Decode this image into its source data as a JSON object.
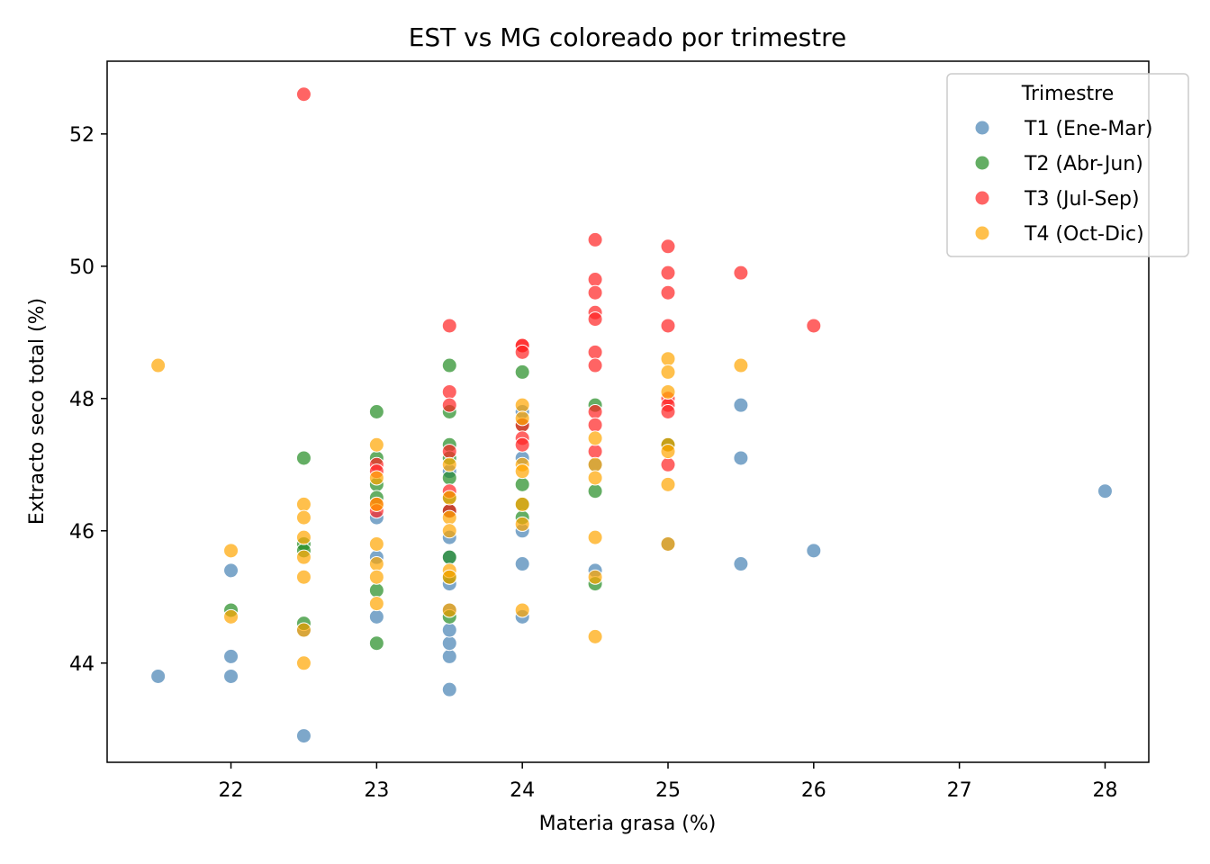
{
  "chart_data": {
    "type": "scatter",
    "title": "EST vs MG coloreado por trimestre",
    "xlabel": "Materia grasa (%)",
    "ylabel": "Extracto seco total (%)",
    "xlim": [
      21.15,
      28.3
    ],
    "ylim": [
      42.5,
      53.1
    ],
    "xticks": [
      "22",
      "23",
      "24",
      "25",
      "26",
      "27",
      "28"
    ],
    "yticks": [
      "44",
      "46",
      "48",
      "50",
      "52"
    ],
    "legend": {
      "title": "Trimestre",
      "position": "top-right"
    },
    "series": [
      {
        "name": "T1 (Ene-Mar)",
        "color": "#4682b4",
        "points": [
          [
            21.5,
            43.8
          ],
          [
            22.0,
            45.4
          ],
          [
            22.0,
            44.1
          ],
          [
            22.0,
            43.8
          ],
          [
            22.5,
            42.9
          ],
          [
            22.5,
            44.5
          ],
          [
            23.0,
            44.7
          ],
          [
            23.0,
            46.2
          ],
          [
            23.0,
            45.6
          ],
          [
            23.5,
            43.6
          ],
          [
            23.5,
            44.1
          ],
          [
            23.5,
            44.3
          ],
          [
            23.5,
            44.5
          ],
          [
            23.5,
            44.8
          ],
          [
            23.5,
            45.2
          ],
          [
            23.5,
            45.6
          ],
          [
            23.5,
            45.9
          ],
          [
            23.5,
            46.3
          ],
          [
            23.5,
            46.9
          ],
          [
            24.0,
            44.7
          ],
          [
            24.0,
            45.5
          ],
          [
            24.0,
            46.0
          ],
          [
            24.0,
            47.1
          ],
          [
            24.0,
            47.8
          ],
          [
            24.5,
            45.4
          ],
          [
            24.5,
            47.0
          ],
          [
            25.0,
            45.8
          ],
          [
            25.0,
            47.3
          ],
          [
            25.5,
            47.9
          ],
          [
            25.5,
            47.1
          ],
          [
            25.5,
            45.5
          ],
          [
            26.0,
            45.7
          ],
          [
            28.0,
            46.6
          ]
        ]
      },
      {
        "name": "T2 (Abr-Jun)",
        "color": "#228b22",
        "points": [
          [
            22.0,
            44.8
          ],
          [
            22.5,
            47.1
          ],
          [
            22.5,
            45.8
          ],
          [
            22.5,
            45.7
          ],
          [
            22.5,
            44.6
          ],
          [
            23.0,
            47.8
          ],
          [
            23.0,
            47.1
          ],
          [
            23.0,
            46.7
          ],
          [
            23.0,
            46.5
          ],
          [
            23.0,
            45.1
          ],
          [
            23.0,
            44.3
          ],
          [
            23.5,
            48.5
          ],
          [
            23.5,
            47.8
          ],
          [
            23.5,
            47.3
          ],
          [
            23.5,
            47.1
          ],
          [
            23.5,
            46.8
          ],
          [
            23.5,
            46.5
          ],
          [
            23.5,
            46.3
          ],
          [
            23.5,
            45.6
          ],
          [
            23.5,
            45.3
          ],
          [
            23.5,
            44.7
          ],
          [
            24.0,
            48.4
          ],
          [
            24.0,
            47.6
          ],
          [
            24.0,
            46.7
          ],
          [
            24.0,
            46.4
          ],
          [
            24.0,
            46.2
          ],
          [
            24.5,
            47.9
          ],
          [
            24.5,
            46.6
          ],
          [
            24.5,
            45.2
          ],
          [
            25.0,
            47.3
          ]
        ]
      },
      {
        "name": "T3 (Jul-Sep)",
        "color": "#ff2222",
        "points": [
          [
            22.5,
            52.6
          ],
          [
            23.0,
            47.0
          ],
          [
            23.0,
            46.9
          ],
          [
            23.0,
            46.4
          ],
          [
            23.0,
            46.3
          ],
          [
            23.5,
            49.1
          ],
          [
            23.5,
            48.1
          ],
          [
            23.5,
            47.9
          ],
          [
            23.5,
            47.2
          ],
          [
            23.5,
            46.6
          ],
          [
            23.5,
            46.3
          ],
          [
            24.0,
            48.8
          ],
          [
            24.0,
            48.8
          ],
          [
            24.0,
            48.7
          ],
          [
            24.0,
            47.6
          ],
          [
            24.0,
            47.4
          ],
          [
            24.0,
            47.3
          ],
          [
            24.5,
            50.4
          ],
          [
            24.5,
            49.8
          ],
          [
            24.5,
            49.6
          ],
          [
            24.5,
            49.3
          ],
          [
            24.5,
            49.2
          ],
          [
            24.5,
            48.7
          ],
          [
            24.5,
            48.5
          ],
          [
            24.5,
            47.8
          ],
          [
            24.5,
            47.6
          ],
          [
            24.5,
            47.2
          ],
          [
            25.0,
            50.3
          ],
          [
            25.0,
            49.9
          ],
          [
            25.0,
            49.6
          ],
          [
            25.0,
            49.1
          ],
          [
            25.0,
            48.0
          ],
          [
            25.0,
            47.9
          ],
          [
            25.0,
            47.8
          ],
          [
            25.0,
            47.0
          ],
          [
            25.5,
            49.9
          ],
          [
            26.0,
            49.1
          ]
        ]
      },
      {
        "name": "T4 (Oct-Dic)",
        "color": "#ffa500",
        "points": [
          [
            21.5,
            48.5
          ],
          [
            22.0,
            45.7
          ],
          [
            22.0,
            44.7
          ],
          [
            22.5,
            46.4
          ],
          [
            22.5,
            46.2
          ],
          [
            22.5,
            45.9
          ],
          [
            22.5,
            45.6
          ],
          [
            22.5,
            45.3
          ],
          [
            22.5,
            44.5
          ],
          [
            22.5,
            44.0
          ],
          [
            23.0,
            47.3
          ],
          [
            23.0,
            46.8
          ],
          [
            23.0,
            46.4
          ],
          [
            23.0,
            45.8
          ],
          [
            23.0,
            45.5
          ],
          [
            23.0,
            45.3
          ],
          [
            23.0,
            44.9
          ],
          [
            23.5,
            47.0
          ],
          [
            23.5,
            46.5
          ],
          [
            23.5,
            46.2
          ],
          [
            23.5,
            46.0
          ],
          [
            23.5,
            45.4
          ],
          [
            23.5,
            45.3
          ],
          [
            23.5,
            44.8
          ],
          [
            24.0,
            47.9
          ],
          [
            24.0,
            47.7
          ],
          [
            24.0,
            47.0
          ],
          [
            24.0,
            46.9
          ],
          [
            24.0,
            46.4
          ],
          [
            24.0,
            46.1
          ],
          [
            24.0,
            44.8
          ],
          [
            24.5,
            47.4
          ],
          [
            24.5,
            47.0
          ],
          [
            24.5,
            46.8
          ],
          [
            24.5,
            45.9
          ],
          [
            24.5,
            45.3
          ],
          [
            24.5,
            44.4
          ],
          [
            25.0,
            48.6
          ],
          [
            25.0,
            48.4
          ],
          [
            25.0,
            48.1
          ],
          [
            25.0,
            47.3
          ],
          [
            25.0,
            47.2
          ],
          [
            25.0,
            46.7
          ],
          [
            25.0,
            45.8
          ],
          [
            25.5,
            48.5
          ]
        ]
      }
    ]
  }
}
